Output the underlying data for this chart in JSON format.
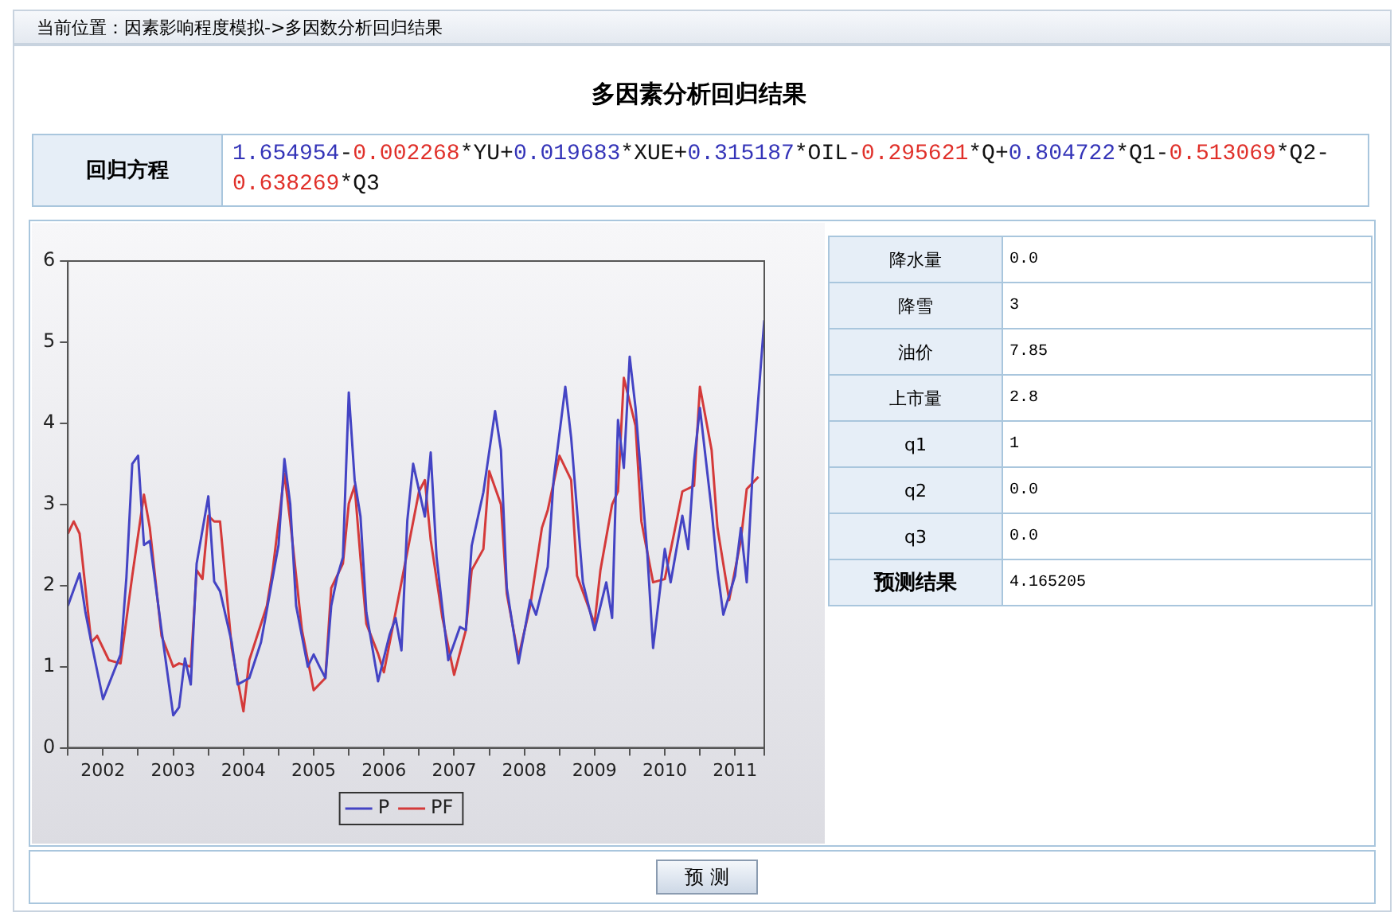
{
  "chart_data": [
    {
      "type": "other",
      "title": "多因素分析回归结果",
      "annotations": [
        "当前位置：因素影响程度模拟->多因数分析回归结果",
        "回归方程",
        "1.654954-0.002268*YU+0.019683*XUE+0.315187*OIL-0.295621*Q+0.804722*Q1-0.513069*Q2-0.638269*Q3"
      ]
    },
    {
      "type": "line",
      "xlim": [
        "2002-01",
        "2011-12"
      ],
      "ylim": [
        0,
        6
      ],
      "yticks": [
        0,
        1,
        2,
        3,
        4,
        5,
        6
      ],
      "xticks": [
        {
          "value": "2002-01",
          "label": null
        },
        {
          "value": "2002-07",
          "label": "2002"
        },
        {
          "value": "2003-01",
          "label": null
        },
        {
          "value": "2003-07",
          "label": "2003"
        },
        {
          "value": "2004-01",
          "label": null
        },
        {
          "value": "2004-07",
          "label": "2004"
        },
        {
          "value": "2005-01",
          "label": null
        },
        {
          "value": "2005-07",
          "label": "2005"
        },
        {
          "value": "2006-01",
          "label": null
        },
        {
          "value": "2006-07",
          "label": "2006"
        },
        {
          "value": "2007-01",
          "label": null
        },
        {
          "value": "2007-07",
          "label": "2007"
        },
        {
          "value": "2008-01",
          "label": null
        },
        {
          "value": "2008-07",
          "label": "2008"
        },
        {
          "value": "2009-01",
          "label": null
        },
        {
          "value": "2009-07",
          "label": "2009"
        },
        {
          "value": "2010-01",
          "label": null
        },
        {
          "value": "2010-07",
          "label": "2010"
        },
        {
          "value": "2011-01",
          "label": null
        },
        {
          "value": "2011-07",
          "label": "2011"
        },
        {
          "value": "2011-12",
          "label": null
        }
      ],
      "grid": false,
      "legend": "bottom",
      "marker": "none",
      "line_style": "solid",
      "series": [
        {
          "name": "P",
          "color": "#4444c4",
          "x": [
            "2002-01",
            "2002-03",
            "2002-04",
            "2002-05",
            "2002-07",
            "2002-10",
            "2002-11",
            "2002-12",
            "2003-01",
            "2003-02",
            "2003-03",
            "2003-05",
            "2003-07",
            "2003-08",
            "2003-09",
            "2003-10",
            "2003-11",
            "2004-01",
            "2004-02",
            "2004-03",
            "2004-05",
            "2004-06",
            "2004-08",
            "2004-10",
            "2004-12",
            "2005-01",
            "2005-02",
            "2005-03",
            "2005-04",
            "2005-06",
            "2005-07",
            "2005-08",
            "2005-09",
            "2005-10",
            "2005-11",
            "2005-12",
            "2006-01",
            "2006-02",
            "2006-03",
            "2006-04",
            "2006-06",
            "2006-08",
            "2006-09",
            "2006-10",
            "2006-11",
            "2006-12",
            "2007-02",
            "2007-03",
            "2007-04",
            "2007-06",
            "2007-08",
            "2007-09",
            "2007-10",
            "2007-12",
            "2008-02",
            "2008-03",
            "2008-04",
            "2008-06",
            "2008-08",
            "2008-09",
            "2008-11",
            "2008-12",
            "2009-02",
            "2009-03",
            "2009-05",
            "2009-07",
            "2009-09",
            "2009-10",
            "2009-11",
            "2009-12",
            "2010-01",
            "2010-02",
            "2010-04",
            "2010-05",
            "2010-07",
            "2010-08",
            "2010-10",
            "2010-11",
            "2010-12",
            "2011-01",
            "2011-03",
            "2011-04",
            "2011-05",
            "2011-07",
            "2011-08",
            "2011-09",
            "2011-10",
            "2011-12"
          ],
          "values": [
            1.75,
            2.15,
            1.67,
            1.3,
            0.6,
            1.15,
            2.1,
            3.5,
            3.6,
            2.5,
            2.55,
            1.45,
            0.4,
            0.5,
            1.1,
            0.78,
            2.27,
            3.1,
            2.05,
            1.93,
            1.3,
            0.78,
            0.86,
            1.3,
            2.1,
            2.5,
            3.56,
            3.0,
            1.75,
            1.0,
            1.15,
            1.0,
            0.86,
            1.75,
            2.1,
            2.35,
            4.38,
            3.3,
            2.85,
            1.67,
            0.82,
            1.4,
            1.6,
            1.2,
            2.8,
            3.5,
            2.85,
            3.64,
            2.35,
            1.08,
            1.49,
            1.45,
            2.49,
            3.15,
            4.15,
            3.67,
            1.97,
            1.04,
            1.82,
            1.64,
            2.23,
            3.3,
            4.45,
            3.82,
            2.04,
            1.45,
            2.04,
            1.6,
            4.04,
            3.45,
            4.82,
            4.19,
            2.41,
            1.23,
            2.45,
            2.04,
            2.86,
            2.45,
            3.53,
            4.19,
            2.93,
            2.19,
            1.64,
            2.12,
            2.71,
            2.04,
            3.38,
            5.27
          ]
        },
        {
          "name": "PF",
          "color": "#d43a3a",
          "x": [
            "2002-01",
            "2002-02",
            "2002-03",
            "2002-05",
            "2002-06",
            "2002-08",
            "2002-10",
            "2002-12",
            "2003-02",
            "2003-03",
            "2003-05",
            "2003-07",
            "2003-08",
            "2003-10",
            "2003-11",
            "2003-12",
            "2004-01",
            "2004-02",
            "2004-03",
            "2004-05",
            "2004-07",
            "2004-08",
            "2004-11",
            "2004-12",
            "2005-02",
            "2005-03",
            "2005-05",
            "2005-07",
            "2005-09",
            "2005-10",
            "2005-12",
            "2006-01",
            "2006-02",
            "2006-03",
            "2006-04",
            "2006-06",
            "2006-07",
            "2006-10",
            "2007-01",
            "2007-02",
            "2007-03",
            "2007-05",
            "2007-07",
            "2007-09",
            "2007-10",
            "2007-12",
            "2008-01",
            "2008-03",
            "2008-04",
            "2008-06",
            "2008-08",
            "2008-10",
            "2008-11",
            "2009-01",
            "2009-03",
            "2009-04",
            "2009-07",
            "2009-08",
            "2009-10",
            "2009-11",
            "2009-12",
            "2010-02",
            "2010-03",
            "2010-05",
            "2010-07",
            "2010-09",
            "2010-10",
            "2010-12",
            "2011-01",
            "2011-03",
            "2011-04",
            "2011-06",
            "2011-08",
            "2011-09",
            "2011-11"
          ],
          "values": [
            2.64,
            2.79,
            2.64,
            1.3,
            1.38,
            1.08,
            1.04,
            2.12,
            3.12,
            2.71,
            1.38,
            1.0,
            1.04,
            1.0,
            2.19,
            2.08,
            2.86,
            2.79,
            2.79,
            1.23,
            0.45,
            1.08,
            1.75,
            2.19,
            3.38,
            2.79,
            1.45,
            0.71,
            0.86,
            1.97,
            2.27,
            3.01,
            3.23,
            2.34,
            1.53,
            1.16,
            0.93,
            2.04,
            3.16,
            3.3,
            2.56,
            1.6,
            0.9,
            1.45,
            2.19,
            2.45,
            3.41,
            3.0,
            1.9,
            1.12,
            1.75,
            2.71,
            2.93,
            3.6,
            3.3,
            2.12,
            1.53,
            2.19,
            3.0,
            3.16,
            4.56,
            3.97,
            2.79,
            2.04,
            2.08,
            2.79,
            3.16,
            3.23,
            4.45,
            3.67,
            2.71,
            1.82,
            2.56,
            3.19,
            3.34
          ]
        }
      ]
    },
    {
      "type": "other",
      "annotations": [
        "预 测"
      ],
      "categories": [
        "降水量",
        "降雪",
        "油价",
        "上市量",
        "q1",
        "q2",
        "q3",
        "预测结果"
      ],
      "value_labels": [
        "0.0",
        "3",
        "7.85",
        "2.8",
        "1",
        "0.0",
        "0.0",
        "4.165205"
      ]
    }
  ]
}
